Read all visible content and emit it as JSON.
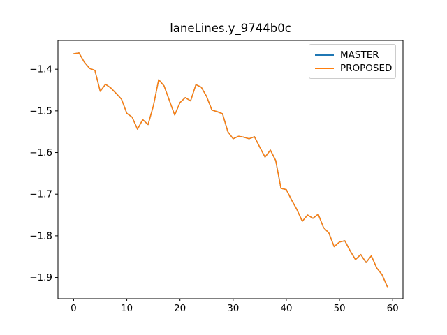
{
  "chart_data": {
    "type": "line",
    "title": "laneLines.y_9744b0c",
    "xlabel": "",
    "ylabel": "",
    "grid": false,
    "background_color": "#ffffff",
    "axes_frame_color": "#000000",
    "xlim": [
      -2.95,
      61.95
    ],
    "ylim": [
      -1.951,
      -1.331
    ],
    "x_ticks": {
      "values": [
        0,
        10,
        20,
        30,
        40,
        50,
        60
      ],
      "labels": [
        "0",
        "10",
        "20",
        "30",
        "40",
        "50",
        "60"
      ]
    },
    "y_ticks": {
      "values": [
        -1.4,
        -1.5,
        -1.6,
        -1.7,
        -1.8,
        -1.9
      ],
      "labels": [
        "−1.4",
        "−1.5",
        "−1.6",
        "−1.7",
        "−1.8",
        "−1.9"
      ]
    },
    "x": [
      0,
      1,
      2,
      3,
      4,
      5,
      6,
      7,
      8,
      9,
      10,
      11,
      12,
      13,
      14,
      15,
      16,
      17,
      18,
      19,
      20,
      21,
      22,
      23,
      24,
      25,
      26,
      27,
      28,
      29,
      30,
      31,
      32,
      33,
      34,
      35,
      36,
      37,
      38,
      39,
      40,
      41,
      42,
      43,
      44,
      45,
      46,
      47,
      48,
      49,
      50,
      51,
      52,
      53,
      54,
      55,
      56,
      57,
      58,
      59
    ],
    "series": [
      {
        "name": "MASTER",
        "color": "#1f77b4",
        "values": [
          -1.363,
          -1.361,
          -1.383,
          -1.398,
          -1.403,
          -1.453,
          -1.436,
          -1.445,
          -1.458,
          -1.472,
          -1.506,
          -1.515,
          -1.544,
          -1.521,
          -1.533,
          -1.488,
          -1.425,
          -1.44,
          -1.475,
          -1.51,
          -1.48,
          -1.468,
          -1.476,
          -1.437,
          -1.443,
          -1.465,
          -1.498,
          -1.502,
          -1.507,
          -1.55,
          -1.567,
          -1.561,
          -1.563,
          -1.567,
          -1.562,
          -1.587,
          -1.611,
          -1.594,
          -1.619,
          -1.686,
          -1.689,
          -1.714,
          -1.737,
          -1.765,
          -1.75,
          -1.758,
          -1.748,
          -1.78,
          -1.793,
          -1.826,
          -1.815,
          -1.812,
          -1.836,
          -1.857,
          -1.845,
          -1.864,
          -1.848,
          -1.877,
          -1.893,
          -1.922
        ]
      },
      {
        "name": "PROPOSED",
        "color": "#ff7f0e",
        "values": [
          -1.363,
          -1.361,
          -1.383,
          -1.398,
          -1.403,
          -1.453,
          -1.436,
          -1.445,
          -1.458,
          -1.472,
          -1.506,
          -1.515,
          -1.544,
          -1.521,
          -1.533,
          -1.488,
          -1.425,
          -1.44,
          -1.475,
          -1.51,
          -1.48,
          -1.468,
          -1.476,
          -1.437,
          -1.443,
          -1.465,
          -1.498,
          -1.502,
          -1.507,
          -1.55,
          -1.567,
          -1.561,
          -1.563,
          -1.567,
          -1.562,
          -1.587,
          -1.611,
          -1.594,
          -1.619,
          -1.686,
          -1.689,
          -1.714,
          -1.737,
          -1.765,
          -1.75,
          -1.758,
          -1.748,
          -1.78,
          -1.793,
          -1.826,
          -1.815,
          -1.812,
          -1.836,
          -1.857,
          -1.845,
          -1.864,
          -1.848,
          -1.877,
          -1.893,
          -1.922
        ]
      }
    ],
    "legend": {
      "position": "upper right",
      "entries": [
        "MASTER",
        "PROPOSED"
      ]
    },
    "note_lines_overlap": "PROPOSED is drawn over MASTER; series are identical so only the orange line is visible in the plot area"
  }
}
